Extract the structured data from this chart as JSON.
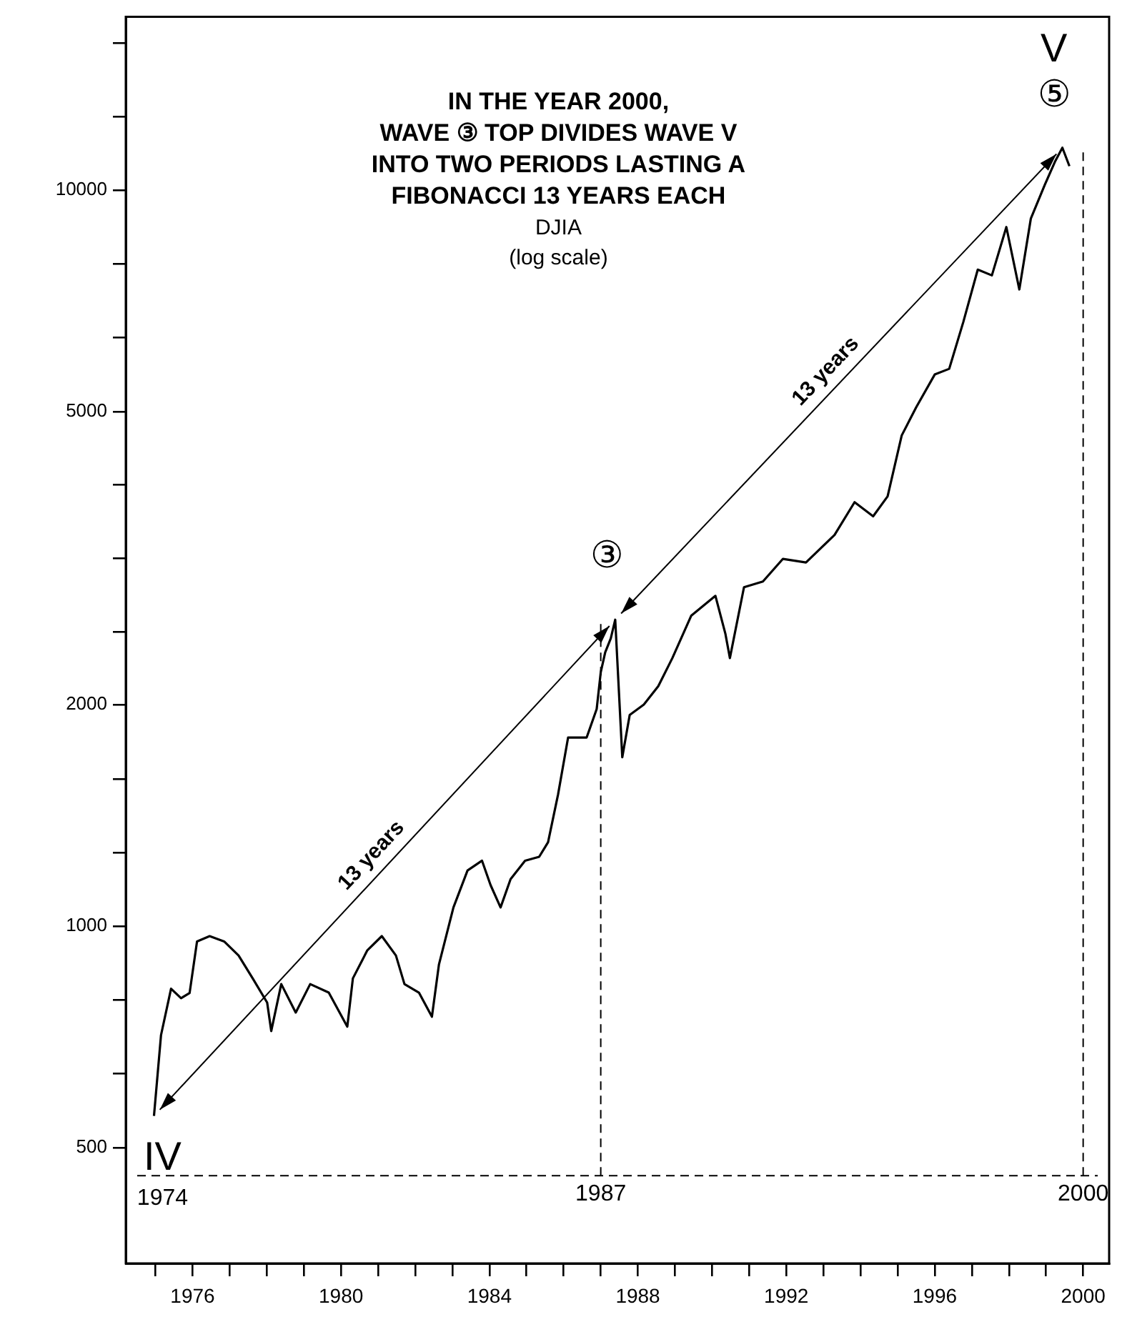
{
  "chart_data": {
    "type": "line",
    "title": "IN THE YEAR 2000,\nWAVE ③ TOP DIVIDES WAVE V\nINTO TWO PERIODS LASTING A\nFIBONACCI 13 YEARS EACH",
    "subtitle": "DJIA\n(log scale)",
    "x": [
      1974.96,
      1975.15,
      1975.42,
      1975.69,
      1975.92,
      1976.12,
      1976.46,
      1976.85,
      1977.24,
      1977.62,
      1978.01,
      1978.12,
      1978.39,
      1978.78,
      1979.17,
      1979.67,
      1980.17,
      1980.32,
      1980.71,
      1981.1,
      1981.48,
      1981.71,
      1982.1,
      1982.45,
      1982.64,
      1983.03,
      1983.41,
      1983.8,
      1984.03,
      1984.3,
      1984.57,
      1984.96,
      1985.34,
      1985.58,
      1985.85,
      1986.12,
      1986.62,
      1986.89,
      1987,
      1987.12,
      1987.27,
      1987.39,
      1987.58,
      1987.78,
      1988.16,
      1988.55,
      1988.93,
      1989.44,
      1990.09,
      1990.36,
      1990.48,
      1990.86,
      1991.37,
      1991.91,
      1992.53,
      1993.3,
      1993.84,
      1994.34,
      1994.73,
      1995.11,
      1995.5,
      1996,
      1996.39,
      1996.77,
      1997.16,
      1997.54,
      1997.93,
      1998.28,
      1998.59,
      1998.97,
      1999.24,
      1999.44,
      1999.63
    ],
    "series": [
      {
        "color": "#000000",
        "values": [
          552,
          711,
          822,
          798,
          811,
          953,
          969,
          953,
          912,
          849,
          787,
          720,
          834,
          763,
          834,
          812,
          730,
          849,
          927,
          969,
          912,
          834,
          812,
          753,
          887,
          1060,
          1190,
          1227,
          1137,
          1060,
          1158,
          1227,
          1242,
          1300,
          1510,
          1804,
          1804,
          1972,
          2213,
          2355,
          2460,
          2608,
          1696,
          1936,
          2000,
          2118,
          2313,
          2642,
          2810,
          2494,
          2313,
          2887,
          2939,
          3155,
          3120,
          3400,
          3767,
          3604,
          3836,
          4642,
          5070,
          5617,
          5718,
          6620,
          7800,
          7660,
          8910,
          7330,
          9150,
          10180,
          10930,
          11420,
          10780
        ]
      }
    ],
    "log": "y",
    "xlim": [
      1974.2,
      2000.7
    ],
    "ylim": [
      348,
      17200
    ],
    "xticks": [
      {
        "value": 1975,
        "label": null
      },
      1976,
      {
        "value": 1977,
        "label": null
      },
      {
        "value": 1978,
        "label": null
      },
      {
        "value": 1979,
        "label": null
      },
      1980,
      {
        "value": 1981,
        "label": null
      },
      {
        "value": 1982,
        "label": null
      },
      {
        "value": 1983,
        "label": null
      },
      1984,
      {
        "value": 1985,
        "label": null
      },
      {
        "value": 1986,
        "label": null
      },
      {
        "value": 1987,
        "label": null
      },
      1988,
      {
        "value": 1989,
        "label": null
      },
      {
        "value": 1990,
        "label": null
      },
      {
        "value": 1991,
        "label": null
      },
      1992,
      {
        "value": 1993,
        "label": null
      },
      {
        "value": 1994,
        "label": null
      },
      {
        "value": 1995,
        "label": null
      },
      1996,
      {
        "value": 1997,
        "label": null
      },
      {
        "value": 1998,
        "label": null
      },
      {
        "value": 1999,
        "label": null
      },
      2000
    ],
    "yticks": [
      500,
      {
        "value": 631,
        "label": null
      },
      {
        "value": 794,
        "label": null
      },
      1000,
      {
        "value": 1259,
        "label": null
      },
      {
        "value": 1585,
        "label": null
      },
      2000,
      {
        "value": 2512,
        "label": null
      },
      {
        "value": 3162,
        "label": null
      },
      {
        "value": 3981,
        "label": null
      },
      5000,
      {
        "value": 6310,
        "label": null
      },
      {
        "value": 7943,
        "label": null
      },
      10000,
      {
        "value": 12589,
        "label": null
      },
      {
        "value": 15849,
        "label": null
      }
    ],
    "ref_lines": [
      {
        "axis": "y",
        "value": 458,
        "line_style": "dashed"
      },
      {
        "axis": "x",
        "value": 1987,
        "label": "1987",
        "line_style": "dashed"
      },
      {
        "axis": "x",
        "value": 2000,
        "label": "2000",
        "line_style": "dashed"
      }
    ],
    "annotations": [
      "IV",
      "③",
      "⑤",
      "V",
      "1974",
      "13 years",
      "13 years"
    ]
  }
}
